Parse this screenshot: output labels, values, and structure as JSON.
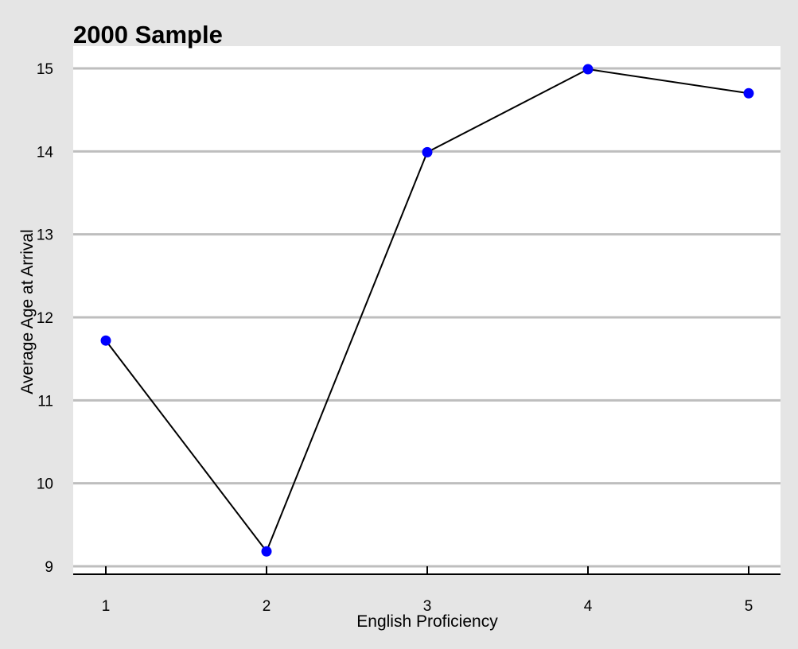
{
  "chart_data": {
    "type": "line",
    "title": "2000 Sample",
    "xlabel": "English Proficiency",
    "ylabel": "Average Age at Arrival",
    "x": [
      1,
      2,
      3,
      4,
      5
    ],
    "x_ticks": [
      "1",
      "2",
      "3",
      "4",
      "5"
    ],
    "y_ticks": [
      "9",
      "10",
      "11",
      "12",
      "13",
      "14",
      "15"
    ],
    "series": [
      {
        "values": [
          11.72,
          9.18,
          13.99,
          14.99,
          14.7
        ]
      }
    ],
    "xlim": [
      0.8,
      5.2
    ],
    "ylim": [
      9,
      15
    ],
    "grid": "horizontal",
    "colors": {
      "background": "#e5e5e5",
      "plot_background": "#ffffff",
      "grid": "#bebebe",
      "line": "#000000",
      "marker": "#0000ff"
    }
  }
}
